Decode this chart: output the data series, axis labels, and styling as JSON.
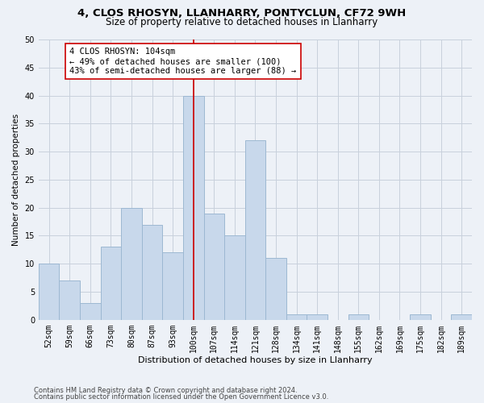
{
  "title1": "4, CLOS RHOSYN, LLANHARRY, PONTYCLUN, CF72 9WH",
  "title2": "Size of property relative to detached houses in Llanharry",
  "xlabel": "Distribution of detached houses by size in Llanharry",
  "ylabel": "Number of detached properties",
  "categories": [
    "52sqm",
    "59sqm",
    "66sqm",
    "73sqm",
    "80sqm",
    "87sqm",
    "93sqm",
    "100sqm",
    "107sqm",
    "114sqm",
    "121sqm",
    "128sqm",
    "134sqm",
    "141sqm",
    "148sqm",
    "155sqm",
    "162sqm",
    "169sqm",
    "175sqm",
    "182sqm",
    "189sqm"
  ],
  "values": [
    10,
    7,
    3,
    13,
    20,
    17,
    12,
    40,
    19,
    15,
    32,
    11,
    1,
    1,
    0,
    1,
    0,
    0,
    1,
    0,
    1
  ],
  "bar_color": "#c8d8eb",
  "bar_edge_color": "#9db8d2",
  "grid_color": "#c8d0dc",
  "background_color": "#edf1f7",
  "vline_x_index": 7,
  "vline_color": "#cc0000",
  "annotation_text": "4 CLOS RHOSYN: 104sqm\n← 49% of detached houses are smaller (100)\n43% of semi-detached houses are larger (88) →",
  "annotation_box_color": "#ffffff",
  "annotation_box_edge": "#cc0000",
  "ylim": [
    0,
    50
  ],
  "yticks": [
    0,
    5,
    10,
    15,
    20,
    25,
    30,
    35,
    40,
    45,
    50
  ],
  "footer1": "Contains HM Land Registry data © Crown copyright and database right 2024.",
  "footer2": "Contains public sector information licensed under the Open Government Licence v3.0.",
  "title1_fontsize": 9.5,
  "title2_fontsize": 8.5,
  "xlabel_fontsize": 8,
  "ylabel_fontsize": 7.5,
  "tick_fontsize": 7,
  "annotation_fontsize": 7.5,
  "footer_fontsize": 6
}
